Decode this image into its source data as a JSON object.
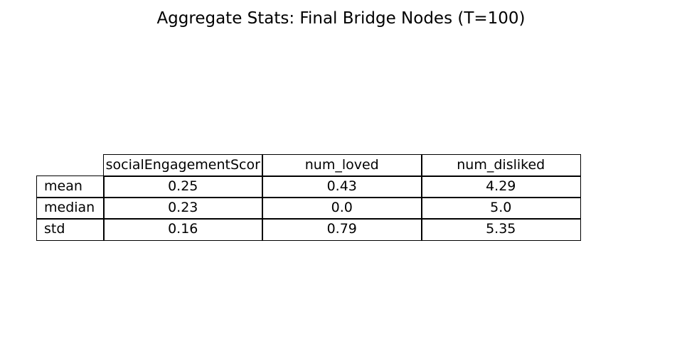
{
  "chart_data": {
    "type": "table",
    "title": "Aggregate Stats: Final Bridge Nodes (T=100)",
    "columns": [
      "socialEngagementScor",
      "num_loved",
      "num_disliked"
    ],
    "rows": [
      {
        "label": "mean",
        "values": [
          "0.25",
          "0.43",
          "4.29"
        ]
      },
      {
        "label": "median",
        "values": [
          "0.23",
          "0.0",
          "5.0"
        ]
      },
      {
        "label": "std",
        "values": [
          "0.16",
          "0.79",
          "5.35"
        ]
      }
    ]
  }
}
